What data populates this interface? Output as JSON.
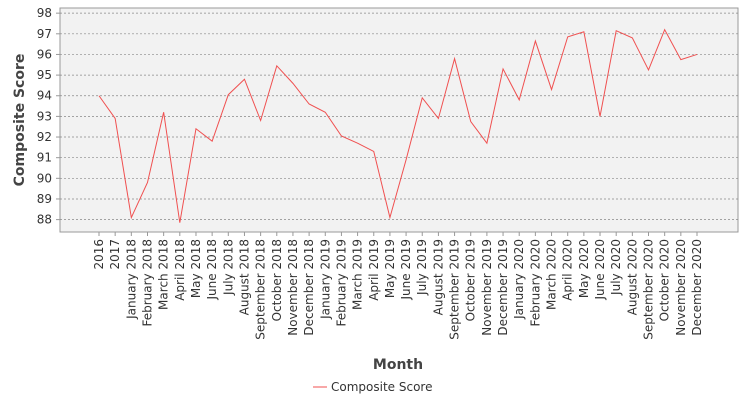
{
  "chart_data": {
    "type": "line",
    "x_label": "Month",
    "y_label": "Composite Score",
    "categories": [
      "2016",
      "2017",
      "January 2018",
      "February 2018",
      "March 2018",
      "April 2018",
      "May 2018",
      "June 2018",
      "July 2018",
      "August 2018",
      "September 2018",
      "October 2018",
      "November 2018",
      "December 2018",
      "January 2019",
      "February 2019",
      "March 2019",
      "April 2019",
      "May 2019",
      "June 2019",
      "July 2019",
      "August 2019",
      "September 2019",
      "October 2019",
      "November 2019",
      "December 2019",
      "January 2020",
      "February 2020",
      "March 2020",
      "April 2020",
      "May 2020",
      "June 2020",
      "July 2020",
      "August 2020",
      "September 2020",
      "October 2020",
      "November 2020",
      "December 2020"
    ],
    "series": [
      {
        "name": "Composite Score",
        "color": "#f05050",
        "values": [
          94.0,
          92.9,
          88.1,
          89.8,
          93.2,
          87.85,
          92.4,
          91.8,
          94.05,
          94.8,
          92.8,
          95.45,
          94.6,
          93.6,
          93.2,
          92.05,
          91.7,
          91.3,
          88.1,
          90.9,
          93.9,
          92.9,
          95.8,
          92.75,
          91.7,
          95.3,
          93.8,
          96.65,
          94.3,
          96.85,
          97.1,
          93.0,
          97.15,
          96.8,
          95.25,
          97.2,
          95.75,
          96.0
        ]
      }
    ],
    "ylim": [
      87.4,
      98.25
    ],
    "yticks": [
      88,
      89,
      90,
      91,
      92,
      93,
      94,
      95,
      96,
      97,
      98
    ],
    "grid": true,
    "legend": "bottom"
  }
}
